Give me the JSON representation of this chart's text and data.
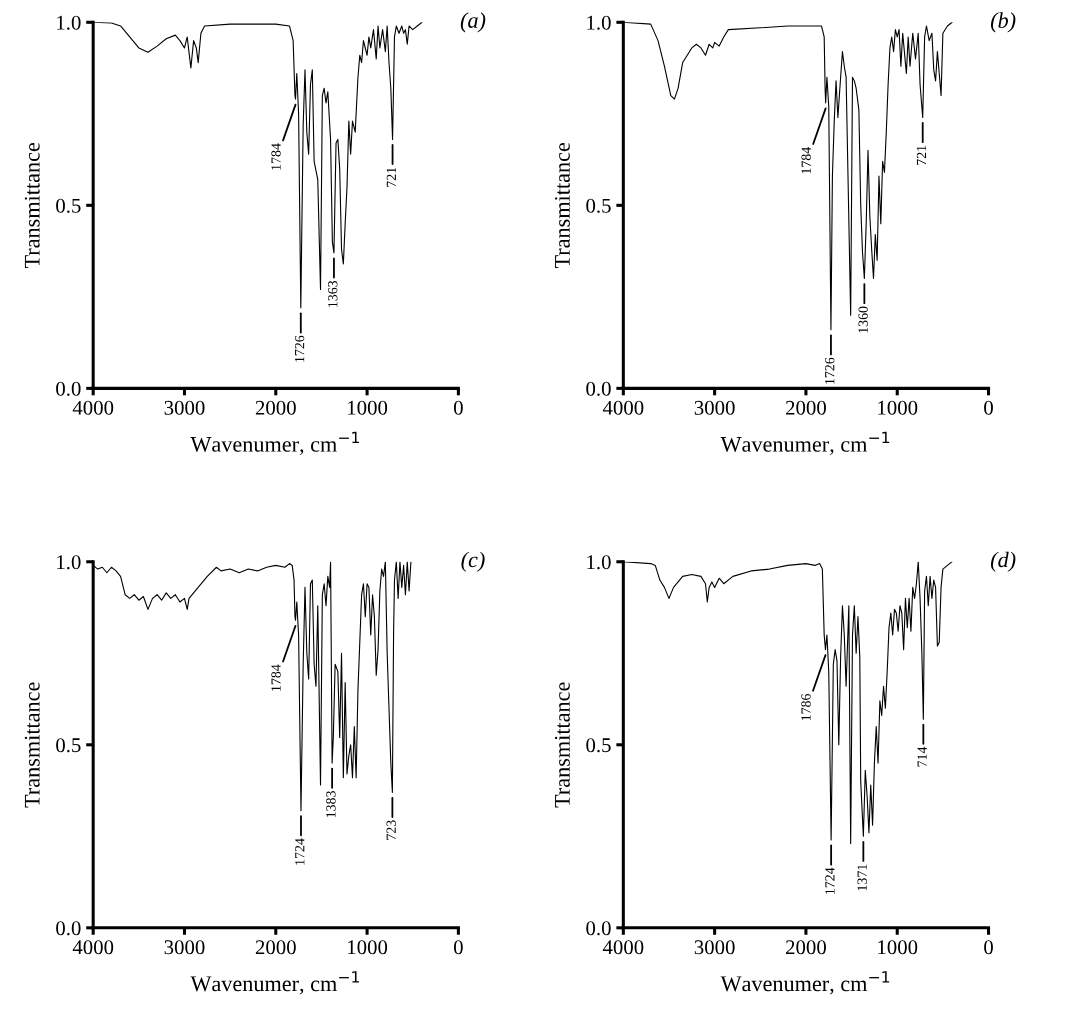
{
  "chart_data": [
    {
      "type": "line",
      "title": "(a)",
      "xlabel": "Wavenumer, cm$^{−1}$",
      "ylabel": "Transmittance",
      "xlim": [
        4000,
        0
      ],
      "xticks": [
        4000,
        3000,
        2000,
        1000,
        0
      ],
      "ylim": [
        0,
        1.0
      ],
      "yticks": [
        {
          "value": 0,
          "label": "0.0"
        },
        {
          "value": 0.5,
          "label": "0.5"
        },
        {
          "value": 1.0,
          "label": "1.0"
        }
      ],
      "grid": false,
      "legend": false,
      "marker": "none",
      "line_style": "solid",
      "series": [
        {
          "color": "#000000",
          "x": [
            4000,
            3800,
            3700,
            3600,
            3500,
            3400,
            3300,
            3200,
            3100,
            3050,
            3000,
            2970,
            2930,
            2900,
            2870,
            2850,
            2820,
            2780,
            2500,
            2000,
            1850,
            1810,
            1790,
            1784,
            1770,
            1750,
            1726,
            1700,
            1680,
            1660,
            1640,
            1620,
            1600,
            1580,
            1540,
            1510,
            1490,
            1470,
            1450,
            1430,
            1400,
            1380,
            1363,
            1340,
            1320,
            1300,
            1280,
            1260,
            1240,
            1220,
            1200,
            1180,
            1160,
            1130,
            1100,
            1080,
            1060,
            1040,
            1000,
            980,
            960,
            930,
            900,
            880,
            860,
            830,
            800,
            780,
            760,
            740,
            721,
            700,
            680,
            650,
            620,
            600,
            580,
            560,
            540,
            500,
            450,
            400
          ],
          "values": [
            1.0,
            0.998,
            0.99,
            0.96,
            0.93,
            0.918,
            0.935,
            0.955,
            0.965,
            0.95,
            0.93,
            0.96,
            0.875,
            0.95,
            0.93,
            0.89,
            0.97,
            0.99,
            0.995,
            0.995,
            0.99,
            0.95,
            0.8,
            0.79,
            0.86,
            0.75,
            0.22,
            0.72,
            0.87,
            0.7,
            0.64,
            0.83,
            0.87,
            0.62,
            0.57,
            0.27,
            0.8,
            0.82,
            0.78,
            0.81,
            0.68,
            0.4,
            0.37,
            0.67,
            0.68,
            0.6,
            0.38,
            0.34,
            0.45,
            0.55,
            0.73,
            0.64,
            0.73,
            0.7,
            0.85,
            0.91,
            0.89,
            0.95,
            0.91,
            0.96,
            0.93,
            0.98,
            0.9,
            0.99,
            0.93,
            0.98,
            0.92,
            0.99,
            0.89,
            0.82,
            0.68,
            0.96,
            0.99,
            0.97,
            0.99,
            0.97,
            0.98,
            0.94,
            0.99,
            0.98,
            0.99,
            1.0
          ]
        }
      ],
      "annotations": [
        {
          "text": "1784",
          "x": 1784,
          "y": 0.79
        },
        {
          "text": "1726",
          "x": 1726,
          "y": 0.22
        },
        {
          "text": "1363",
          "x": 1363,
          "y": 0.37
        },
        {
          "text": "721",
          "x": 721,
          "y": 0.68
        }
      ]
    },
    {
      "type": "line",
      "title": "(b)",
      "xlabel": "Wavenumer, cm$^{−1}$",
      "ylabel": "Transmittance",
      "xlim": [
        4000,
        0
      ],
      "xticks": [
        4000,
        3000,
        2000,
        1000,
        0
      ],
      "ylim": [
        0,
        1.0
      ],
      "yticks": [
        {
          "value": 0,
          "label": "0.0"
        },
        {
          "value": 0.5,
          "label": "0.5"
        },
        {
          "value": 1.0,
          "label": "1.0"
        }
      ],
      "grid": false,
      "legend": false,
      "marker": "none",
      "line_style": "solid",
      "series": [
        {
          "color": "#000000",
          "x": [
            4000,
            3700,
            3620,
            3550,
            3480,
            3440,
            3400,
            3350,
            3250,
            3200,
            3150,
            3100,
            3060,
            3020,
            3000,
            2950,
            2900,
            2850,
            2500,
            2200,
            1900,
            1830,
            1800,
            1790,
            1784,
            1770,
            1750,
            1726,
            1710,
            1690,
            1670,
            1650,
            1620,
            1600,
            1580,
            1560,
            1510,
            1490,
            1470,
            1450,
            1420,
            1400,
            1380,
            1360,
            1340,
            1320,
            1300,
            1280,
            1260,
            1240,
            1220,
            1200,
            1180,
            1160,
            1140,
            1120,
            1100,
            1080,
            1060,
            1040,
            1020,
            1000,
            980,
            960,
            940,
            900,
            880,
            860,
            830,
            800,
            770,
            750,
            721,
            700,
            680,
            650,
            620,
            600,
            580,
            560,
            540,
            520,
            500,
            450,
            400
          ],
          "values": [
            1.0,
            0.995,
            0.95,
            0.88,
            0.8,
            0.79,
            0.82,
            0.89,
            0.93,
            0.94,
            0.93,
            0.91,
            0.94,
            0.93,
            0.945,
            0.935,
            0.96,
            0.98,
            0.985,
            0.99,
            0.99,
            0.99,
            0.96,
            0.82,
            0.78,
            0.85,
            0.77,
            0.16,
            0.58,
            0.73,
            0.84,
            0.74,
            0.85,
            0.92,
            0.88,
            0.85,
            0.2,
            0.85,
            0.84,
            0.82,
            0.76,
            0.5,
            0.37,
            0.3,
            0.45,
            0.65,
            0.47,
            0.38,
            0.3,
            0.42,
            0.35,
            0.58,
            0.45,
            0.62,
            0.59,
            0.7,
            0.83,
            0.93,
            0.96,
            0.92,
            0.98,
            0.96,
            0.98,
            0.88,
            0.97,
            0.86,
            0.96,
            0.88,
            0.97,
            0.9,
            0.97,
            0.83,
            0.74,
            0.96,
            0.99,
            0.95,
            0.97,
            0.87,
            0.84,
            0.92,
            0.86,
            0.8,
            0.97,
            0.99,
            1.0
          ]
        }
      ],
      "annotations": [
        {
          "text": "1784",
          "x": 1784,
          "y": 0.78
        },
        {
          "text": "1726",
          "x": 1726,
          "y": 0.16
        },
        {
          "text": "1360",
          "x": 1360,
          "y": 0.3
        },
        {
          "text": "721",
          "x": 721,
          "y": 0.74
        }
      ]
    },
    {
      "type": "line",
      "title": "(c)",
      "xlabel": "Wavenumer, cm$^{−1}$",
      "ylabel": "Transmittance",
      "xlim": [
        4000,
        0
      ],
      "xticks": [
        4000,
        3000,
        2000,
        1000,
        0
      ],
      "ylim": [
        0,
        1.0
      ],
      "yticks": [
        {
          "value": 0,
          "label": "0.0"
        },
        {
          "value": 0.5,
          "label": "0.5"
        },
        {
          "value": 1.0,
          "label": "1.0"
        }
      ],
      "grid": false,
      "legend": false,
      "marker": "none",
      "line_style": "solid",
      "series": [
        {
          "color": "#000000",
          "x": [
            4000,
            3950,
            3900,
            3850,
            3800,
            3750,
            3700,
            3650,
            3600,
            3550,
            3500,
            3450,
            3400,
            3350,
            3300,
            3250,
            3200,
            3150,
            3100,
            3050,
            3000,
            2970,
            2950,
            2850,
            2750,
            2650,
            2600,
            2500,
            2400,
            2300,
            2200,
            2100,
            2000,
            1900,
            1850,
            1820,
            1800,
            1790,
            1784,
            1770,
            1750,
            1724,
            1700,
            1680,
            1660,
            1640,
            1620,
            1600,
            1580,
            1560,
            1540,
            1510,
            1490,
            1470,
            1450,
            1430,
            1410,
            1400,
            1383,
            1370,
            1350,
            1320,
            1300,
            1280,
            1260,
            1240,
            1220,
            1200,
            1180,
            1160,
            1140,
            1120,
            1100,
            1080,
            1060,
            1040,
            1020,
            1000,
            980,
            960,
            940,
            920,
            900,
            880,
            860,
            840,
            820,
            800,
            780,
            760,
            740,
            723,
            710,
            700,
            680,
            660,
            640,
            620,
            600,
            580,
            560,
            540,
            520
          ],
          "values": [
            0.99,
            0.98,
            0.985,
            0.97,
            0.985,
            0.975,
            0.96,
            0.91,
            0.9,
            0.91,
            0.895,
            0.905,
            0.87,
            0.9,
            0.91,
            0.895,
            0.915,
            0.9,
            0.91,
            0.89,
            0.9,
            0.87,
            0.9,
            0.93,
            0.96,
            0.985,
            0.975,
            0.98,
            0.97,
            0.98,
            0.975,
            0.985,
            0.99,
            0.985,
            0.995,
            0.99,
            0.95,
            0.85,
            0.84,
            0.89,
            0.8,
            0.32,
            0.72,
            0.93,
            0.75,
            0.68,
            0.94,
            0.95,
            0.72,
            0.66,
            0.88,
            0.39,
            0.91,
            0.94,
            0.88,
            0.96,
            0.93,
            1.0,
            0.45,
            0.52,
            0.72,
            0.7,
            0.52,
            0.75,
            0.41,
            0.67,
            0.42,
            0.47,
            0.5,
            0.41,
            0.55,
            0.41,
            0.65,
            0.78,
            0.91,
            0.94,
            0.85,
            0.94,
            0.93,
            0.8,
            0.91,
            0.85,
            0.69,
            0.76,
            0.92,
            0.98,
            0.96,
            1.0,
            0.75,
            0.6,
            0.45,
            0.37,
            0.8,
            0.95,
            1.0,
            0.9,
            1.0,
            0.93,
            0.99,
            0.91,
            1.0,
            0.92,
            1.0
          ]
        }
      ],
      "annotations": [
        {
          "text": "1784",
          "x": 1784,
          "y": 0.84
        },
        {
          "text": "1724",
          "x": 1724,
          "y": 0.32
        },
        {
          "text": "1383",
          "x": 1383,
          "y": 0.45
        },
        {
          "text": "723",
          "x": 723,
          "y": 0.37
        }
      ]
    },
    {
      "type": "line",
      "title": "(d)",
      "xlabel": "Wavenumer, cm$^{−1}$",
      "ylabel": "Transmittance",
      "xlim": [
        4000,
        0
      ],
      "xticks": [
        4000,
        3000,
        2000,
        1000,
        0
      ],
      "ylim": [
        0,
        1.0
      ],
      "yticks": [
        {
          "value": 0,
          "label": "0.0"
        },
        {
          "value": 0.5,
          "label": "0.5"
        },
        {
          "value": 1.0,
          "label": "1.0"
        }
      ],
      "grid": false,
      "legend": false,
      "marker": "none",
      "line_style": "solid",
      "series": [
        {
          "color": "#000000",
          "x": [
            4000,
            3700,
            3650,
            3600,
            3550,
            3500,
            3450,
            3350,
            3250,
            3150,
            3100,
            3080,
            3060,
            3030,
            3000,
            2950,
            2900,
            2800,
            2600,
            2400,
            2200,
            2000,
            1900,
            1850,
            1820,
            1800,
            1786,
            1770,
            1750,
            1724,
            1700,
            1680,
            1660,
            1640,
            1620,
            1600,
            1580,
            1560,
            1530,
            1510,
            1490,
            1470,
            1450,
            1430,
            1410,
            1400,
            1371,
            1350,
            1330,
            1310,
            1290,
            1270,
            1250,
            1230,
            1210,
            1190,
            1170,
            1150,
            1130,
            1110,
            1090,
            1070,
            1050,
            1030,
            1010,
            990,
            970,
            950,
            930,
            910,
            890,
            870,
            850,
            830,
            810,
            790,
            770,
            750,
            730,
            714,
            700,
            680,
            660,
            640,
            620,
            600,
            580,
            560,
            540,
            520,
            500,
            450,
            400
          ],
          "values": [
            1.0,
            0.995,
            0.99,
            0.95,
            0.93,
            0.9,
            0.93,
            0.96,
            0.965,
            0.96,
            0.94,
            0.89,
            0.93,
            0.945,
            0.93,
            0.955,
            0.94,
            0.96,
            0.975,
            0.98,
            0.99,
            0.995,
            0.99,
            0.995,
            0.98,
            0.8,
            0.76,
            0.8,
            0.7,
            0.24,
            0.72,
            0.76,
            0.73,
            0.5,
            0.74,
            0.88,
            0.8,
            0.66,
            0.88,
            0.23,
            0.8,
            0.88,
            0.75,
            0.85,
            0.74,
            0.4,
            0.25,
            0.43,
            0.36,
            0.26,
            0.39,
            0.28,
            0.45,
            0.55,
            0.45,
            0.62,
            0.58,
            0.66,
            0.6,
            0.7,
            0.82,
            0.86,
            0.8,
            0.87,
            0.86,
            0.81,
            0.88,
            0.86,
            0.76,
            0.9,
            0.82,
            0.9,
            0.81,
            0.93,
            0.9,
            0.94,
            1.0,
            0.9,
            0.75,
            0.57,
            0.92,
            0.96,
            0.88,
            0.96,
            0.9,
            0.95,
            0.93,
            0.77,
            0.78,
            0.93,
            0.98,
            0.99,
            1.0
          ]
        }
      ],
      "annotations": [
        {
          "text": "1786",
          "x": 1786,
          "y": 0.76
        },
        {
          "text": "1724",
          "x": 1724,
          "y": 0.24
        },
        {
          "text": "1371",
          "x": 1371,
          "y": 0.25
        },
        {
          "text": "714",
          "x": 714,
          "y": 0.57
        }
      ]
    }
  ]
}
